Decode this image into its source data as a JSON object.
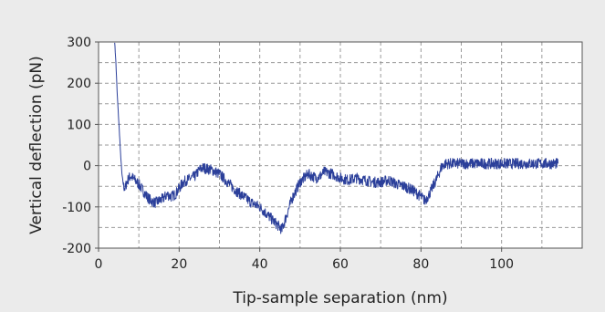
{
  "chart_data": {
    "type": "line",
    "title": "",
    "xlabel": "Tip-sample separation (nm)",
    "ylabel": "Vertical deflection (pN)",
    "xlim": [
      0,
      120
    ],
    "ylim": [
      -200,
      300
    ],
    "x_ticks": [
      0,
      20,
      40,
      60,
      80,
      100
    ],
    "y_ticks": [
      -200,
      -100,
      0,
      100,
      200,
      300
    ],
    "grid": true,
    "series": [
      {
        "name": "",
        "color": "#2b3f9a",
        "x": [
          4,
          4.3,
          4.6,
          5,
          5.4,
          5.8,
          6.2,
          6.6,
          7,
          7.5,
          8,
          9,
          10,
          11,
          12,
          13,
          14,
          15,
          16,
          17,
          18,
          19,
          20,
          21,
          22,
          23,
          24,
          25,
          26,
          27,
          28,
          29,
          30,
          32,
          34,
          36,
          38,
          40,
          42,
          44,
          45,
          45.5,
          46,
          47,
          48,
          49,
          50,
          51,
          52,
          53,
          54,
          55,
          56,
          58,
          60,
          62,
          64,
          66,
          68,
          70,
          72,
          74,
          76,
          78,
          80,
          81,
          82,
          83,
          84,
          85,
          86,
          88,
          90,
          95,
          100,
          105,
          110,
          114
        ],
        "y": [
          300,
          250,
          180,
          110,
          40,
          -20,
          -50,
          -55,
          -40,
          -30,
          -25,
          -35,
          -45,
          -60,
          -75,
          -85,
          -90,
          -85,
          -80,
          -70,
          -75,
          -70,
          -55,
          -40,
          -35,
          -30,
          -25,
          -10,
          -5,
          -8,
          -10,
          -15,
          -20,
          -40,
          -60,
          -75,
          -90,
          -100,
          -120,
          -140,
          -150,
          -155,
          -140,
          -110,
          -80,
          -60,
          -40,
          -30,
          -20,
          -25,
          -30,
          -25,
          -15,
          -20,
          -30,
          -35,
          -30,
          -35,
          -40,
          -40,
          -35,
          -45,
          -50,
          -60,
          -75,
          -85,
          -70,
          -50,
          -30,
          -5,
          5,
          5,
          5,
          5,
          5,
          5,
          5,
          5
        ]
      }
    ]
  }
}
